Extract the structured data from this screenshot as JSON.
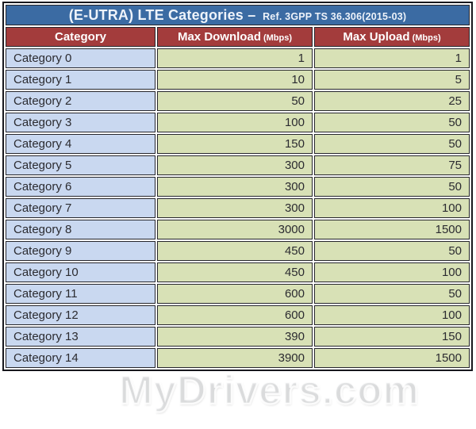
{
  "title": {
    "main": "(E-UTRA) LTE Categories –",
    "ref": "Ref. 3GPP TS 36.306(2015-03)"
  },
  "columns": [
    {
      "label": "Category"
    },
    {
      "label": "Max Download",
      "unit": "(Mbps)"
    },
    {
      "label": "Max Upload",
      "unit": "(Mbps)"
    }
  ],
  "rows": [
    {
      "category": "Category 0",
      "download": "1",
      "upload": "1"
    },
    {
      "category": "Category 1",
      "download": "10",
      "upload": "5"
    },
    {
      "category": "Category 2",
      "download": "50",
      "upload": "25"
    },
    {
      "category": "Category 3",
      "download": "100",
      "upload": "50"
    },
    {
      "category": "Category 4",
      "download": "150",
      "upload": "50"
    },
    {
      "category": "Category 5",
      "download": "300",
      "upload": "75"
    },
    {
      "category": "Category 6",
      "download": "300",
      "upload": "50"
    },
    {
      "category": "Category 7",
      "download": "300",
      "upload": "100"
    },
    {
      "category": "Category 8",
      "download": "3000",
      "upload": "1500"
    },
    {
      "category": "Category 9",
      "download": "450",
      "upload": "50"
    },
    {
      "category": "Category 10",
      "download": "450",
      "upload": "100"
    },
    {
      "category": "Category 11",
      "download": "600",
      "upload": "50"
    },
    {
      "category": "Category 12",
      "download": "600",
      "upload": "100"
    },
    {
      "category": "Category 13",
      "download": "390",
      "upload": "150"
    },
    {
      "category": "Category 14",
      "download": "3900",
      "upload": "1500"
    }
  ],
  "watermark": "MyDrivers.com",
  "colors": {
    "title_bg": "#3b6ba3",
    "header_bg": "#a33c3c",
    "category_col_bg": "#c9d8f0",
    "value_col_bg": "#d8e1b6",
    "border": "#26262c",
    "title_text": "#eef3fa",
    "header_text": "#ffffff",
    "cell_text": "#2b2b30"
  },
  "chart_data": {
    "type": "table",
    "title": "(E-UTRA) LTE Categories – Ref. 3GPP TS 36.306(2015-03)",
    "columns": [
      "Category",
      "Max Download (Mbps)",
      "Max Upload (Mbps)"
    ],
    "rows": [
      [
        "Category 0",
        1,
        1
      ],
      [
        "Category 1",
        10,
        5
      ],
      [
        "Category 2",
        50,
        25
      ],
      [
        "Category 3",
        100,
        50
      ],
      [
        "Category 4",
        150,
        50
      ],
      [
        "Category 5",
        300,
        75
      ],
      [
        "Category 6",
        300,
        50
      ],
      [
        "Category 7",
        300,
        100
      ],
      [
        "Category 8",
        3000,
        1500
      ],
      [
        "Category 9",
        450,
        50
      ],
      [
        "Category 10",
        450,
        100
      ],
      [
        "Category 11",
        600,
        50
      ],
      [
        "Category 12",
        600,
        100
      ],
      [
        "Category 13",
        390,
        150
      ],
      [
        "Category 14",
        3900,
        1500
      ]
    ]
  }
}
